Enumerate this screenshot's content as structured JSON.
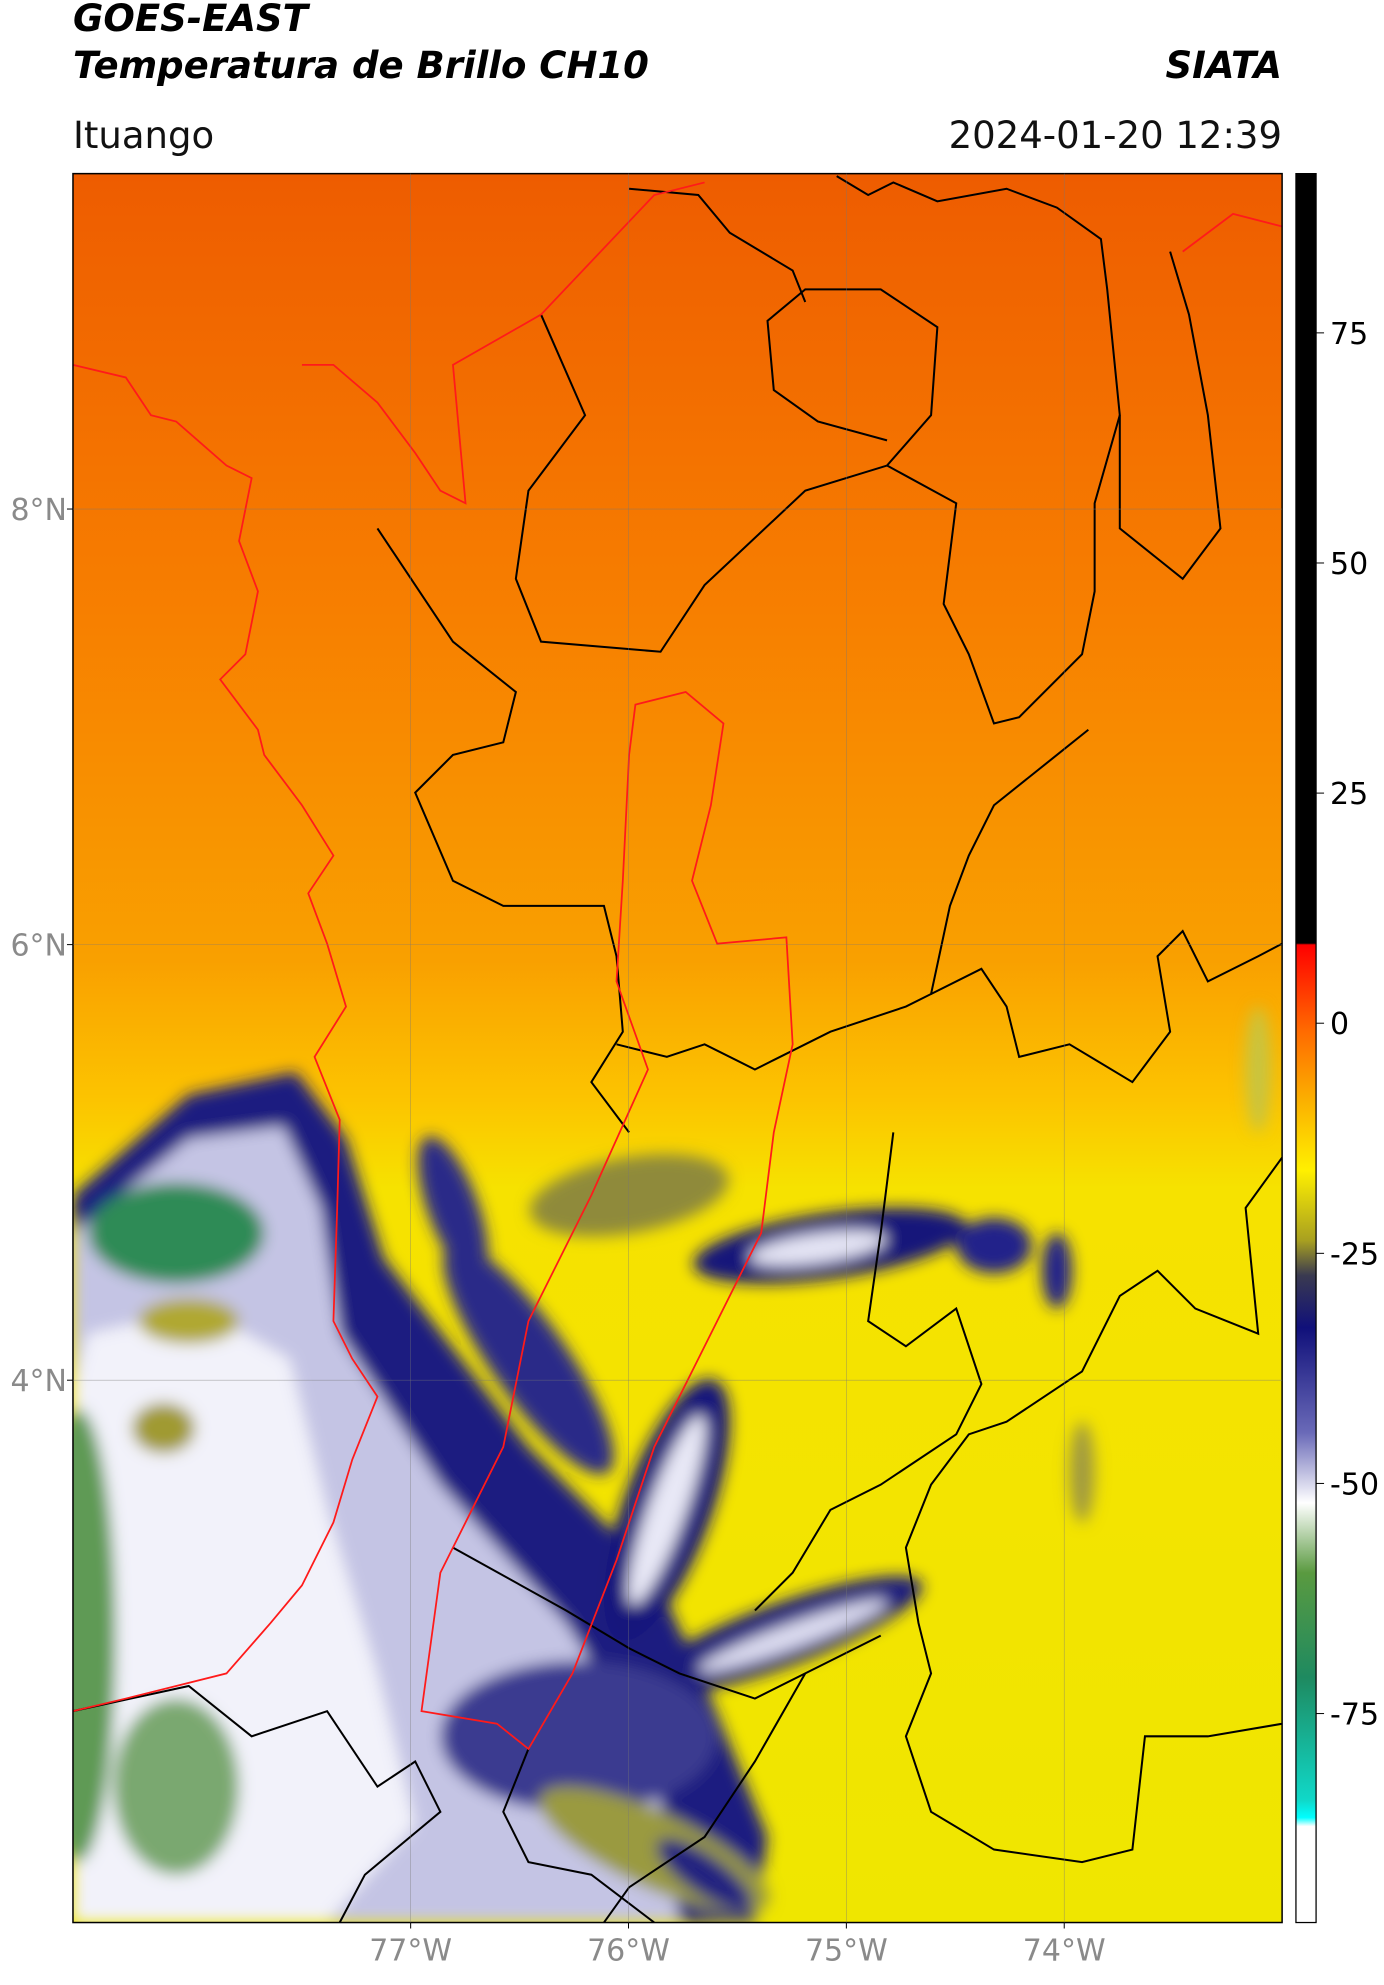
{
  "header": {
    "title": "GOES-EAST",
    "subtitle": "Temperatura de Brillo CH10",
    "source": "SIATA",
    "region": "Ituango",
    "timestamp": "2024-01-20 12:39"
  },
  "map": {
    "lonlim": [
      -78.55,
      -73.0
    ],
    "latlim": [
      1.51,
      9.54
    ],
    "lon_ticks": [
      {
        "value": -77,
        "label": "77°W"
      },
      {
        "value": -76,
        "label": "76°W"
      },
      {
        "value": -75,
        "label": "75°W"
      },
      {
        "value": -74,
        "label": "74°W"
      }
    ],
    "lat_ticks": [
      {
        "value": 8,
        "label": "8°N"
      },
      {
        "value": 6,
        "label": "6°N"
      },
      {
        "value": 4,
        "label": "4°N"
      }
    ],
    "grid": true
  },
  "colorbar": {
    "lim": [
      -97.7,
      92.3
    ],
    "ticks": [
      75,
      50,
      25,
      0,
      -25,
      -50,
      -75
    ]
  }
}
